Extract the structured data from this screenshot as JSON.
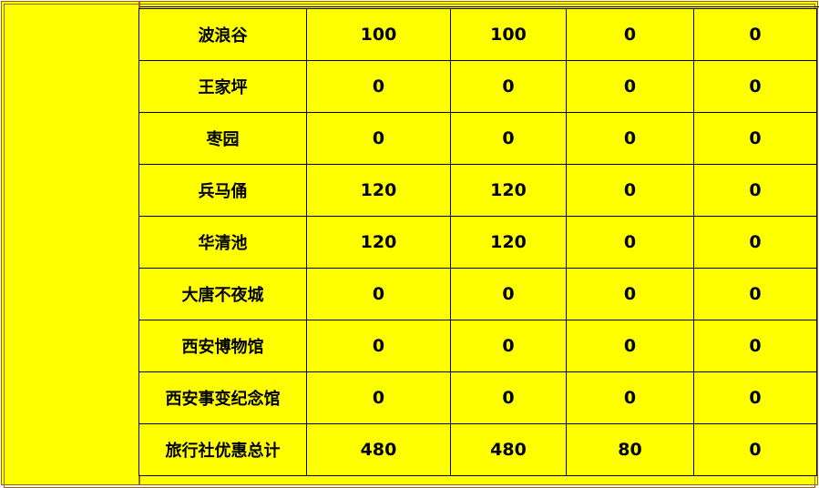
{
  "table": {
    "rows": [
      {
        "name": "波浪谷",
        "values": [
          "100",
          "100",
          "0",
          "0"
        ]
      },
      {
        "name": "王家坪",
        "values": [
          "0",
          "0",
          "0",
          "0"
        ]
      },
      {
        "name": "枣园",
        "values": [
          "0",
          "0",
          "0",
          "0"
        ]
      },
      {
        "name": "兵马俑",
        "values": [
          "120",
          "120",
          "0",
          "0"
        ]
      },
      {
        "name": "华清池",
        "values": [
          "120",
          "120",
          "0",
          "0"
        ]
      },
      {
        "name": "大唐不夜城",
        "values": [
          "0",
          "0",
          "0",
          "0"
        ]
      },
      {
        "name": "西安博物馆",
        "values": [
          "0",
          "0",
          "0",
          "0"
        ]
      },
      {
        "name": "西安事变纪念馆",
        "values": [
          "0",
          "0",
          "0",
          "0"
        ]
      },
      {
        "name": "旅行社优惠总计",
        "values": [
          "480",
          "480",
          "80",
          "0"
        ]
      }
    ]
  },
  "colors": {
    "background": "#ffff00",
    "border": "#a0600a",
    "grid": "#000000"
  }
}
